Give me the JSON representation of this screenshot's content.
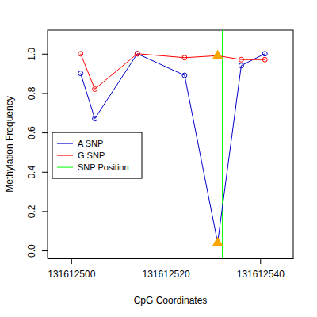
{
  "chart_data": {
    "type": "line",
    "x_label": "CpG Coordinates",
    "y_label": "Methylation Frequency",
    "x": [
      131612502,
      131612505,
      131612514,
      131612524,
      131612531,
      131612536,
      131612541
    ],
    "series": [
      {
        "name": "A SNP",
        "color": "#0000cc",
        "marker": "circle",
        "values": [
          0.9,
          0.67,
          1.0,
          0.89,
          0.04,
          0.94,
          1.0
        ]
      },
      {
        "name": "G SNP",
        "color": "#ff0000",
        "marker": "circle",
        "values": [
          1.0,
          0.82,
          1.0,
          0.98,
          0.99,
          0.97,
          0.97
        ]
      }
    ],
    "snp_markers": {
      "x": [
        131612531,
        131612531
      ],
      "values": [
        0.99,
        0.04
      ],
      "color": "#ffa500",
      "marker": "triangle"
    },
    "snp_position": {
      "name": "SNP Position",
      "x": 131612532,
      "color": "#00ff00"
    },
    "xlim": [
      131612495,
      131612547
    ],
    "ylim": [
      -0.04,
      1.12
    ],
    "xticks": [
      131612500,
      131612520,
      131612540
    ],
    "yticks": [
      {
        "value": 0,
        "label": "0.0"
      },
      {
        "value": 0.2,
        "label": "0.2"
      },
      {
        "value": 0.4,
        "label": "0.4"
      },
      {
        "value": 0.6,
        "label": "0.6"
      },
      {
        "value": 0.8,
        "label": "0.8"
      },
      {
        "value": 1.0,
        "label": "1.0"
      }
    ],
    "legend": "left"
  }
}
